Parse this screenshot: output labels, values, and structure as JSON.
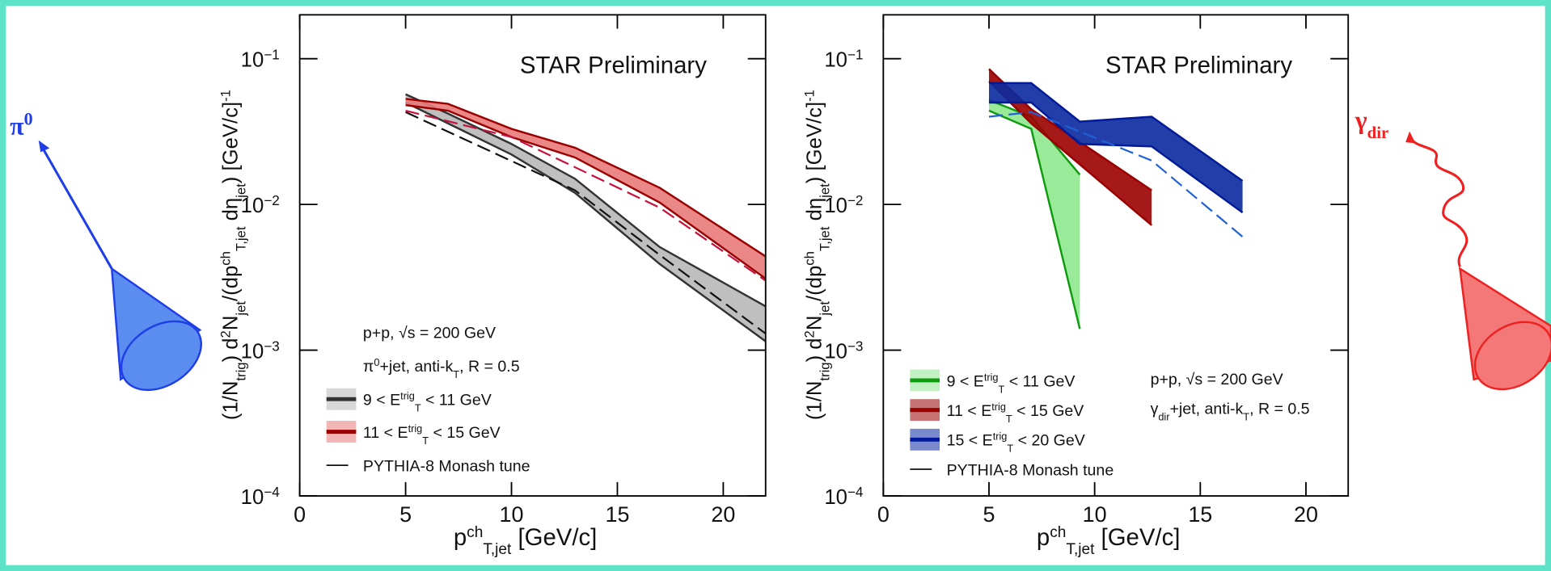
{
  "left_particle": {
    "symbol": "π",
    "sup": "0"
  },
  "right_particle": {
    "symbol": "γ",
    "sub": "dir"
  },
  "chart_data": [
    {
      "type": "band",
      "title": "STAR Preliminary",
      "log_y": true,
      "xlim": [
        0,
        22
      ],
      "xticks": [
        0,
        5,
        10,
        15,
        20
      ],
      "ylim": [
        0.0001,
        0.2
      ],
      "yticks": [
        {
          "value": 0.0001,
          "label": "10",
          "exponent": "−4"
        },
        {
          "value": 0.001,
          "label": "10",
          "exponent": "−3"
        },
        {
          "value": 0.01,
          "label": "10",
          "exponent": "−2"
        },
        {
          "value": 0.1,
          "label": "10",
          "exponent": "−1"
        }
      ],
      "xlabel": [
        {
          "text": "p"
        },
        {
          "text": "ch",
          "pos": "sup"
        },
        {
          "text": "T,jet",
          "pos": "sub"
        },
        {
          "text": " [GeV/c]"
        }
      ],
      "ylabel": [
        {
          "text": "(1/N"
        },
        {
          "text": "trig",
          "pos": "sub"
        },
        {
          "text": ") d"
        },
        {
          "text": "2",
          "pos": "sup"
        },
        {
          "text": "N"
        },
        {
          "text": "jet",
          "pos": "sub"
        },
        {
          "text": "/(dp"
        },
        {
          "text": "ch",
          "pos": "sup"
        },
        {
          "text": "T,jet",
          "pos": "sub"
        },
        {
          "text": " dη"
        },
        {
          "text": "jet",
          "pos": "sub"
        },
        {
          "text": ") [GeV/c]"
        },
        {
          "text": "-1",
          "pos": "sup"
        }
      ],
      "info": [
        [
          {
            "text": "p+p, √s = 200 GeV"
          }
        ],
        [
          {
            "text": "π"
          },
          {
            "text": "0",
            "pos": "sup"
          },
          {
            "text": "+jet, anti-k"
          },
          {
            "text": "T",
            "pos": "sub"
          },
          {
            "text": ", R = 0.5"
          }
        ]
      ],
      "bands": [
        {
          "name": [
            {
              "text": "9 < E"
            },
            {
              "text": "trig",
              "pos": "sup"
            },
            {
              "text": "T",
              "pos": "sub"
            },
            {
              "text": " < 11 GeV"
            }
          ],
          "color": "#333333",
          "fill": "#b8b8b8",
          "x": [
            5,
            7,
            10,
            13,
            17,
            22
          ],
          "upper": [
            0.057,
            0.042,
            0.026,
            0.015,
            0.0051,
            0.002
          ],
          "lower": [
            0.05,
            0.036,
            0.022,
            0.012,
            0.0039,
            0.00115
          ]
        },
        {
          "name": [
            {
              "text": "11 < E"
            },
            {
              "text": "trig",
              "pos": "sup"
            },
            {
              "text": "T",
              "pos": "sub"
            },
            {
              "text": " < 15 GeV"
            }
          ],
          "color": "#9b0000",
          "fill": "#e87a7a",
          "x": [
            5,
            7,
            10,
            13,
            17,
            22
          ],
          "upper": [
            0.053,
            0.049,
            0.033,
            0.0245,
            0.013,
            0.0044
          ],
          "lower": [
            0.048,
            0.044,
            0.029,
            0.021,
            0.0103,
            0.0031
          ]
        }
      ],
      "model_label": "PYTHIA-8 Monash tune",
      "model_curves": [
        {
          "color": "#111111",
          "x": [
            5,
            13,
            17,
            22
          ],
          "values": [
            0.043,
            0.0125,
            0.0045,
            0.0013
          ]
        },
        {
          "color": "#c8103c",
          "x": [
            5,
            10,
            13,
            17,
            22
          ],
          "values": [
            0.044,
            0.029,
            0.018,
            0.0095,
            0.003
          ]
        }
      ]
    },
    {
      "type": "band",
      "title": "STAR Preliminary",
      "log_y": true,
      "xlim": [
        0,
        22
      ],
      "xticks": [
        0,
        5,
        10,
        15,
        20
      ],
      "ylim": [
        0.0001,
        0.2
      ],
      "yticks": [
        {
          "value": 0.0001,
          "label": "10",
          "exponent": "−4"
        },
        {
          "value": 0.001,
          "label": "10",
          "exponent": "−3"
        },
        {
          "value": 0.01,
          "label": "10",
          "exponent": "−2"
        },
        {
          "value": 0.1,
          "label": "10",
          "exponent": "−1"
        }
      ],
      "xlabel": [
        {
          "text": "p"
        },
        {
          "text": "ch",
          "pos": "sup"
        },
        {
          "text": "T,jet",
          "pos": "sub"
        },
        {
          "text": " [GeV/c]"
        }
      ],
      "ylabel": [
        {
          "text": "(1/N"
        },
        {
          "text": "trig",
          "pos": "sub"
        },
        {
          "text": ") d"
        },
        {
          "text": "2",
          "pos": "sup"
        },
        {
          "text": "N"
        },
        {
          "text": "jet",
          "pos": "sub"
        },
        {
          "text": "/(dp"
        },
        {
          "text": "ch",
          "pos": "sup"
        },
        {
          "text": "T,jet",
          "pos": "sub"
        },
        {
          "text": " dη"
        },
        {
          "text": "jet",
          "pos": "sub"
        },
        {
          "text": ") [GeV/c]"
        },
        {
          "text": "-1",
          "pos": "sup"
        }
      ],
      "info": [
        [
          {
            "text": "p+p, √s = 200 GeV"
          }
        ],
        [
          {
            "text": "γ"
          },
          {
            "text": "dir",
            "pos": "sub"
          },
          {
            "text": "+jet, anti-k"
          },
          {
            "text": "T",
            "pos": "sub"
          },
          {
            "text": ", R = 0.5"
          }
        ]
      ],
      "bands": [
        {
          "name": [
            {
              "text": "9 < E"
            },
            {
              "text": "trig",
              "pos": "sup"
            },
            {
              "text": "T",
              "pos": "sub"
            },
            {
              "text": " < 11 GeV"
            }
          ],
          "color": "#0f9a0f",
          "fill": "#8ee88e",
          "x": [
            5,
            7,
            9.3
          ],
          "upper": [
            0.052,
            0.04,
            0.016
          ],
          "lower": [
            0.044,
            0.033,
            0.0014
          ]
        },
        {
          "name": [
            {
              "text": "11 < E"
            },
            {
              "text": "trig",
              "pos": "sup"
            },
            {
              "text": "T",
              "pos": "sub"
            },
            {
              "text": " < 15 GeV"
            }
          ],
          "color": "#9b0000",
          "fill": "#9b0000",
          "x": [
            5,
            7,
            12.7
          ],
          "upper": [
            0.085,
            0.045,
            0.0125
          ],
          "lower": [
            0.07,
            0.036,
            0.0072
          ]
        },
        {
          "name": [
            {
              "text": "15 < E"
            },
            {
              "text": "trig",
              "pos": "sup"
            },
            {
              "text": "T",
              "pos": "sub"
            },
            {
              "text": " < 20 GeV"
            }
          ],
          "color": "#001a99",
          "fill": "#0a2aa0",
          "x": [
            5,
            7,
            9.3,
            12.7,
            17
          ],
          "upper": [
            0.068,
            0.068,
            0.037,
            0.04,
            0.0145
          ],
          "lower": [
            0.05,
            0.05,
            0.026,
            0.025,
            0.0088
          ]
        }
      ],
      "model_label": "PYTHIA-8 Monash tune",
      "model_curves": [
        {
          "color": "#2060d8",
          "x": [
            5,
            7,
            12.7,
            17
          ],
          "values": [
            0.04,
            0.043,
            0.02,
            0.006
          ]
        }
      ]
    }
  ]
}
